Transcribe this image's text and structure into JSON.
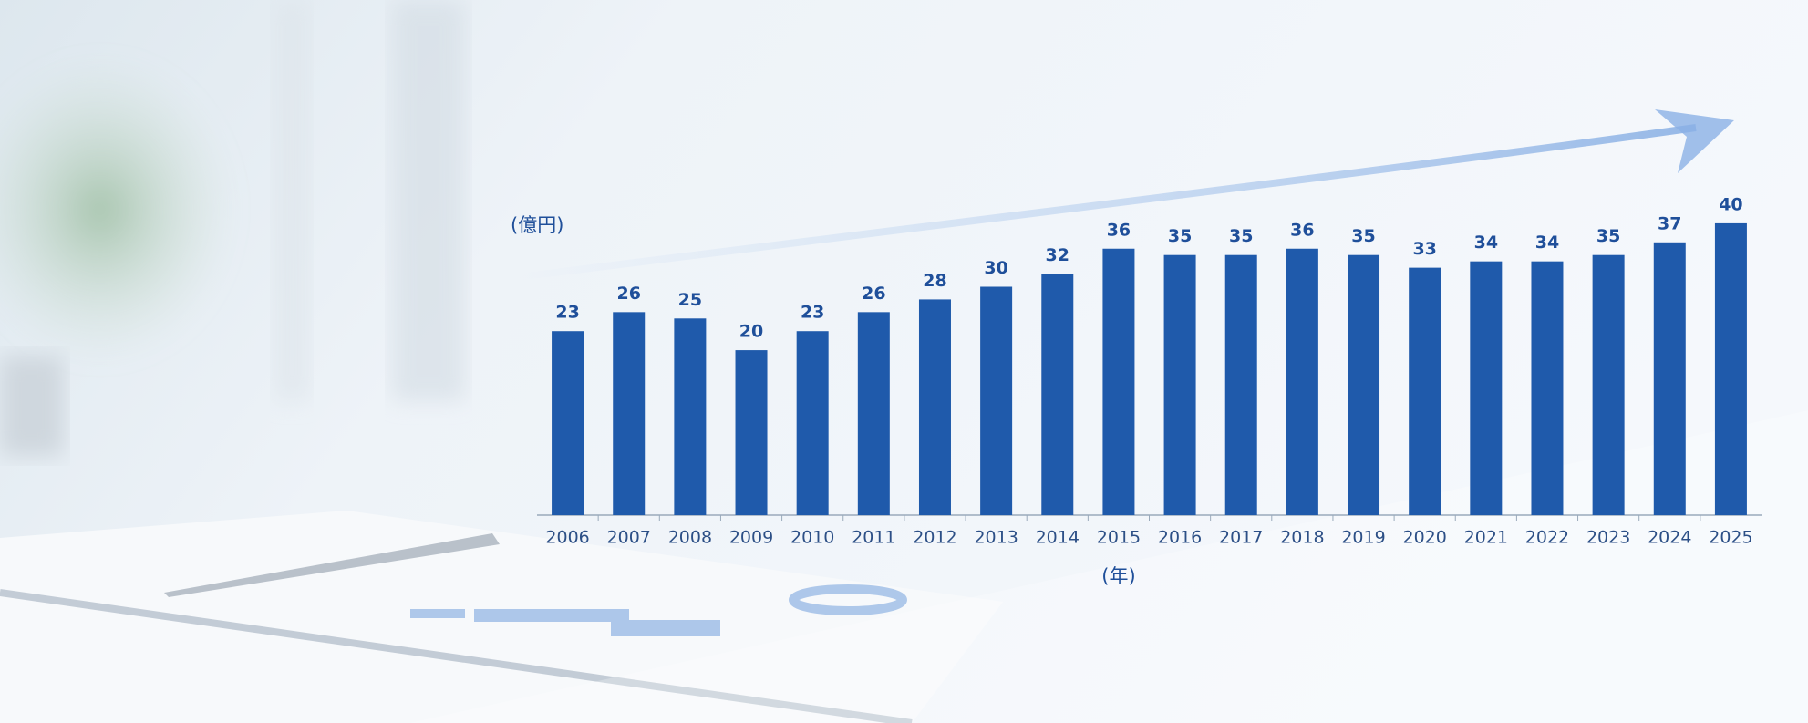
{
  "chart_data": {
    "type": "bar",
    "y_label": "(億円)",
    "x_label": "(年)",
    "categories": [
      "2006",
      "2007",
      "2008",
      "2009",
      "2010",
      "2011",
      "2012",
      "2013",
      "2014",
      "2015",
      "2016",
      "2017",
      "2018",
      "2019",
      "2020",
      "2021",
      "2022",
      "2023",
      "2024",
      "2025"
    ],
    "values": [
      23,
      26,
      25,
      20,
      23,
      26,
      28,
      30,
      32,
      36,
      35,
      35,
      36,
      35,
      33,
      34,
      34,
      35,
      37,
      40
    ],
    "color": "#1f5aab",
    "ylim": [
      -6,
      42
    ]
  }
}
